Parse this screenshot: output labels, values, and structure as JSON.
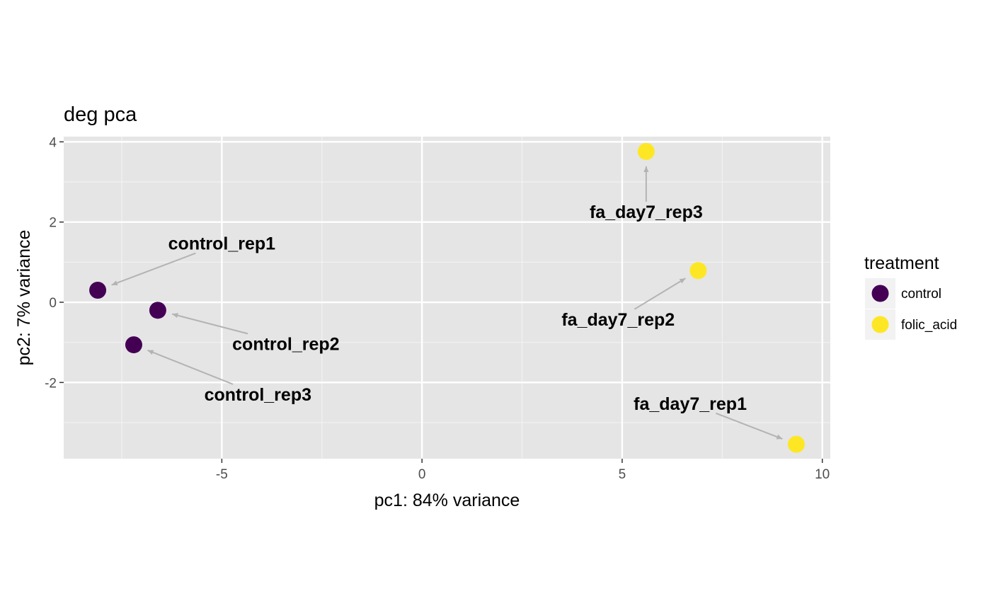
{
  "chart_data": {
    "type": "scatter",
    "title": "deg pca",
    "xlabel": "pc1: 84% variance",
    "ylabel": "pc2: 7% variance",
    "xlim": [
      -8.95,
      10.2
    ],
    "ylim": [
      -3.9,
      4.13
    ],
    "xticks": [
      -5,
      0,
      5,
      10
    ],
    "xtick_labels": [
      "-5",
      "0",
      "5",
      "10"
    ],
    "yticks": [
      -2,
      0,
      2,
      4
    ],
    "ytick_labels": [
      "-2",
      "0",
      "2",
      "4"
    ],
    "grid": true,
    "legend": {
      "title": "treatment",
      "position": "right",
      "entries": [
        {
          "name": "control",
          "color": "#440154"
        },
        {
          "name": "folic_acid",
          "color": "#FDE725"
        }
      ]
    },
    "points": [
      {
        "label": "control_rep1",
        "group": "control",
        "x": -8.1,
        "y": 0.3,
        "label_x": -5.0,
        "label_y": 1.47
      },
      {
        "label": "control_rep2",
        "group": "control",
        "x": -6.6,
        "y": -0.2,
        "label_x": -3.4,
        "label_y": -1.03
      },
      {
        "label": "control_rep3",
        "group": "control",
        "x": -7.2,
        "y": -1.06,
        "label_x": -4.1,
        "label_y": -2.29
      },
      {
        "label": "fa_day7_rep3",
        "group": "folic_acid",
        "x": 5.6,
        "y": 3.76,
        "label_x": 5.6,
        "label_y": 2.26
      },
      {
        "label": "fa_day7_rep2",
        "group": "folic_acid",
        "x": 6.9,
        "y": 0.79,
        "label_x": 4.9,
        "label_y": -0.42
      },
      {
        "label": "fa_day7_rep1",
        "group": "folic_acid",
        "x": 9.35,
        "y": -3.54,
        "label_x": 6.7,
        "label_y": -2.52
      }
    ]
  }
}
